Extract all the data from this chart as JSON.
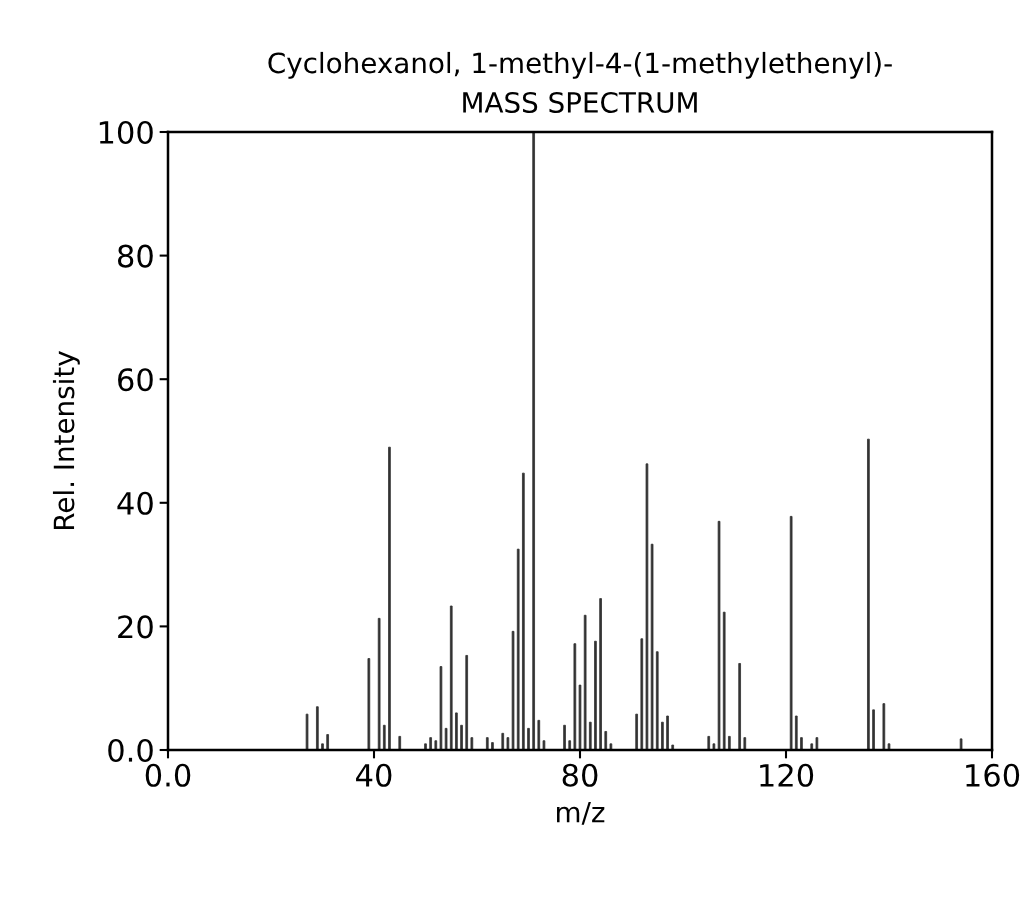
{
  "chart_data": {
    "type": "bar",
    "title": "Cyclohexanol, 1-methyl-4-(1-methylethenyl)-\nMASS SPECTRUM",
    "xlabel": "m/z",
    "ylabel": "Rel. Intensity",
    "x": [
      27,
      29,
      30,
      31,
      39,
      41,
      42,
      43,
      45,
      50,
      51,
      52,
      53,
      54,
      55,
      56,
      57,
      58,
      59,
      62,
      63,
      65,
      66,
      67,
      68,
      69,
      70,
      71,
      72,
      73,
      77,
      78,
      79,
      80,
      81,
      82,
      83,
      84,
      85,
      86,
      91,
      92,
      93,
      94,
      95,
      96,
      97,
      98,
      105,
      106,
      107,
      108,
      109,
      111,
      112,
      121,
      122,
      123,
      125,
      126,
      136,
      137,
      139,
      140,
      154
    ],
    "values": [
      5.8,
      7,
      1,
      2.5,
      14.8,
      21.3,
      4,
      49,
      2.2,
      1,
      2,
      1.5,
      13.5,
      3.5,
      23.3,
      6,
      4,
      15.3,
      2,
      2,
      1.2,
      2.7,
      2,
      19.2,
      32.5,
      44.8,
      3.5,
      100,
      4.8,
      1.5,
      4,
      1.5,
      17.2,
      10.5,
      21.8,
      4.5,
      17.6,
      24.5,
      3,
      1,
      5.8,
      18,
      46.3,
      33.3,
      15.9,
      4.5,
      5.5,
      0.8,
      2.2,
      1,
      37,
      22.3,
      2.2,
      14,
      2,
      37.8,
      5.5,
      2,
      1,
      2,
      50.3,
      6.5,
      7.5,
      1,
      1.8
    ],
    "color": "#333333",
    "xlim": [
      0,
      160
    ],
    "ylim": [
      0,
      100
    ],
    "xticks": [
      {
        "value": 0,
        "label": "0.0"
      },
      40,
      80,
      120,
      160
    ],
    "yticks": [
      {
        "value": 0,
        "label": "0.0"
      },
      20,
      40,
      60,
      80,
      100
    ],
    "grid": false,
    "legend": false
  }
}
